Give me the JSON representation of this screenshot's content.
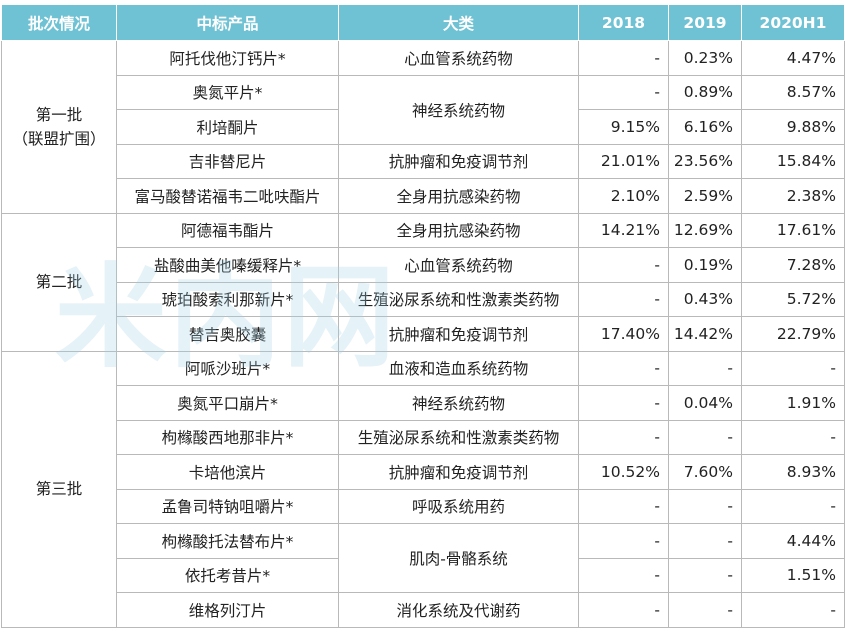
{
  "headers": [
    "批次情况",
    "中标产品",
    "大类",
    "2018",
    "2019",
    "2020H1"
  ],
  "batches": [
    {
      "label_line1": "第一批",
      "label_line2": "（联盟扩围）"
    },
    {
      "label_line1": "第二批",
      "label_line2": ""
    },
    {
      "label_line1": "第三批",
      "label_line2": ""
    }
  ],
  "rows": [
    {
      "product": "阿托伐他汀钙片*",
      "category": "心血管系统药物",
      "y2018": "-",
      "y2019": "0.23%",
      "y2020h1": "4.47%"
    },
    {
      "product": "奥氮平片*",
      "category": "神经系统药物",
      "y2018": "-",
      "y2019": "0.89%",
      "y2020h1": "8.57%"
    },
    {
      "product": "利培酮片",
      "category": "",
      "y2018": "9.15%",
      "y2019": "6.16%",
      "y2020h1": "9.88%"
    },
    {
      "product": "吉非替尼片",
      "category": "抗肿瘤和免疫调节剂",
      "y2018": "21.01%",
      "y2019": "23.56%",
      "y2020h1": "15.84%"
    },
    {
      "product": "富马酸替诺福韦二吡呋酯片",
      "category": "全身用抗感染药物",
      "y2018": "2.10%",
      "y2019": "2.59%",
      "y2020h1": "2.38%"
    },
    {
      "product": "阿德福韦酯片",
      "category": "全身用抗感染药物",
      "y2018": "14.21%",
      "y2019": "12.69%",
      "y2020h1": "17.61%"
    },
    {
      "product": "盐酸曲美他嗪缓释片*",
      "category": "心血管系统药物",
      "y2018": "-",
      "y2019": "0.19%",
      "y2020h1": "7.28%"
    },
    {
      "product": "琥珀酸索利那新片*",
      "category": "生殖泌尿系统和性激素类药物",
      "y2018": "-",
      "y2019": "0.43%",
      "y2020h1": "5.72%"
    },
    {
      "product": "替吉奥胶囊",
      "category": "抗肿瘤和免疫调节剂",
      "y2018": "17.40%",
      "y2019": "14.42%",
      "y2020h1": "22.79%"
    },
    {
      "product": "阿哌沙班片*",
      "category": "血液和造血系统药物",
      "y2018": "-",
      "y2019": "-",
      "y2020h1": "-"
    },
    {
      "product": "奥氮平口崩片*",
      "category": "神经系统药物",
      "y2018": "-",
      "y2019": "0.04%",
      "y2020h1": "1.91%"
    },
    {
      "product": "枸橼酸西地那非片*",
      "category": "生殖泌尿系统和性激素类药物",
      "y2018": "-",
      "y2019": "-",
      "y2020h1": "-"
    },
    {
      "product": "卡培他滨片",
      "category": "抗肿瘤和免疫调节剂",
      "y2018": "10.52%",
      "y2019": "7.60%",
      "y2020h1": "8.93%"
    },
    {
      "product": "孟鲁司特钠咀嚼片*",
      "category": "呼吸系统用药",
      "y2018": "-",
      "y2019": "-",
      "y2020h1": "-"
    },
    {
      "product": "枸橼酸托法替布片*",
      "category": "肌肉-骨骼系统",
      "y2018": "-",
      "y2019": "-",
      "y2020h1": "4.44%"
    },
    {
      "product": "依托考昔片*",
      "category": "",
      "y2018": "-",
      "y2019": "-",
      "y2020h1": "1.51%"
    },
    {
      "product": "维格列汀片",
      "category": "消化系统及代谢药",
      "y2018": "-",
      "y2019": "-",
      "y2020h1": "-"
    }
  ],
  "watermark": "米内网"
}
